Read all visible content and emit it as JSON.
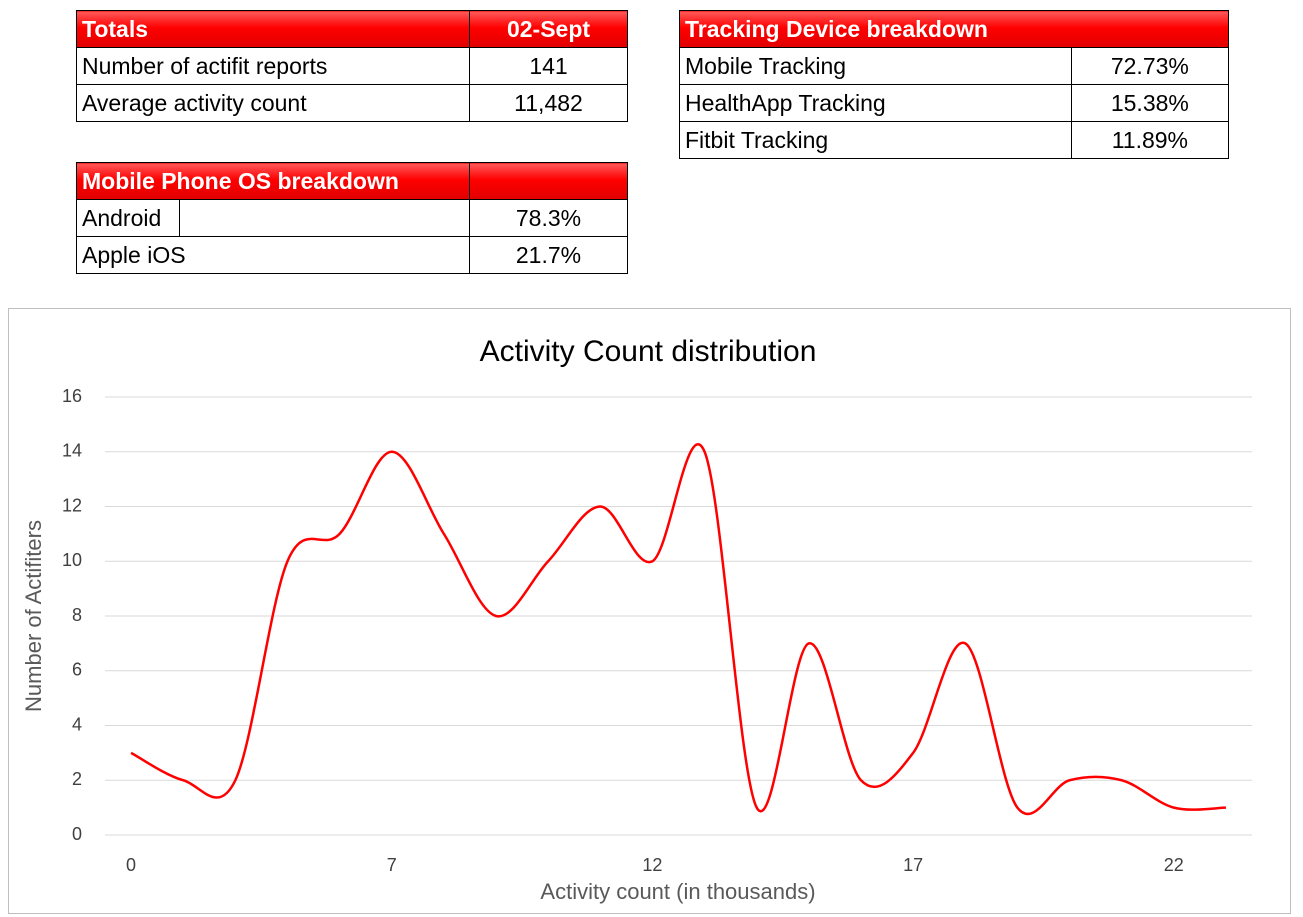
{
  "totals": {
    "header": [
      "Totals",
      "02-Sept"
    ],
    "rows": [
      [
        "Number of actifit reports",
        "141"
      ],
      [
        "Average activity count",
        "11,482"
      ]
    ]
  },
  "os_breakdown": {
    "title": "Mobile Phone OS breakdown",
    "rows": [
      [
        "Android",
        "78.3%"
      ],
      [
        "Apple iOS",
        "21.7%"
      ]
    ]
  },
  "tracking_breakdown": {
    "title": "Tracking Device breakdown",
    "rows": [
      [
        "Mobile Tracking",
        "72.73%"
      ],
      [
        "HealthApp Tracking",
        "15.38%"
      ],
      [
        "Fitbit Tracking",
        "11.89%"
      ]
    ]
  },
  "chart_data": {
    "type": "line",
    "title": "Activity Count distribution",
    "x_label": "Activity count (in thousands)",
    "y_label": "Number of Actifiters",
    "categories": [
      "0",
      null,
      null,
      null,
      null,
      "7",
      null,
      null,
      null,
      null,
      "12",
      null,
      null,
      null,
      null,
      "17",
      null,
      null,
      null,
      null,
      "22",
      null
    ],
    "series": [
      {
        "name": "Actifiters",
        "color": "#ff0000",
        "values": [
          3,
          2,
          2,
          10,
          11,
          14,
          11,
          8,
          10,
          12,
          10,
          14,
          1,
          7,
          2,
          3,
          7,
          1,
          2,
          2,
          1,
          1
        ]
      }
    ],
    "ylim": [
      0,
      16
    ],
    "yticks": [
      0,
      2,
      4,
      6,
      8,
      10,
      12,
      14,
      16
    ],
    "grid": true,
    "smooth": true
  }
}
